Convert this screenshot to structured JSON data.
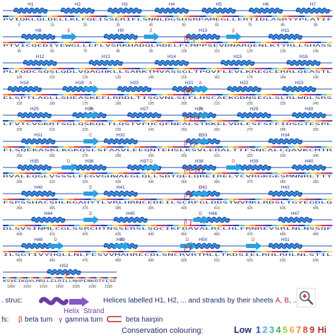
{
  "colors": {
    "helix": "#1f4fb5",
    "helix_light": "#3aa6de",
    "strand": "#2aa0e0",
    "baseline": "#1f4fb5",
    "conservation_band": [
      "#1e3f9a",
      "#5bb8e8",
      "#ffd84a",
      "#ff8a3c",
      "#e63a2c",
      "#7a3fb0"
    ],
    "turn_label": "#c0262d",
    "conservation_levels": [
      "#2a46c6",
      "#5aa6e8",
      "#2fb2b8",
      "#44b24a",
      "#9bcc3a",
      "#e8b12a",
      "#f0801e",
      "#e4482c",
      "#c0262d"
    ]
  },
  "rows": [
    {
      "helix_labels": [
        "H1",
        "H2",
        "H3",
        "H4",
        "H5",
        "H6",
        "H7"
      ],
      "start": 5,
      "step": 10,
      "seq": "PVIQKLQLDELLKLFQEISSERIFLSNNLDGSHSRPAMEGLLERTIDLASRYYPLATIF",
      "sheet_labels": [],
      "turns": ""
    },
    {
      "helix_labels": [
        "H8",
        "H9",
        "H10",
        "H11"
      ],
      "start": 55,
      "step": 10,
      "seq": "PTVICQEDIYEWGLLEFLVSRKHADQLRDELFCMPPSEVDNARQENLKTYRLLSHASS",
      "sheet_labels": [
        "β",
        "β",
        "β"
      ],
      "turns": "ββ γ"
    },
    {
      "helix_labels": [
        "H12",
        "H13",
        "H14",
        "H15",
        "H16"
      ],
      "start": 105,
      "step": 10,
      "seq": "PLFQDCSQSLQDLVQAGHKLLSARKTMVASSGLTPQVFLEVLKREGCERRLQEASTL",
      "sheet_labels": [],
      "turns": ""
    },
    {
      "helix_labels": [
        "H18",
        "H19",
        "H20",
        "H21",
        "H22",
        "H23"
      ],
      "start": 155,
      "step": 10,
      "seq": "ELSPTLAGLLSHEASKEFLRRDLTISGVNLSEFLHSCAEKGDNSEGLSLRLWDLSRS",
      "sheet_labels": [
        "A",
        "A"
      ],
      "turns": "βββ"
    },
    {
      "helix_labels": [
        "H25",
        "H26",
        "H27",
        "H28",
        "H29",
        "H30"
      ],
      "start": 205,
      "step": 10,
      "seq": "LFVTCVGKRTSGLQSKQLTLQSTVFHCQFNEALSTKKELVDLFSFSFFIDSGTESPL",
      "sheet_labels": [
        "B",
        "B"
      ],
      "turns": "β γ ββ"
    },
    {
      "helix_labels": [
        "H31",
        "H32",
        "H33",
        "H34"
      ],
      "start": 255,
      "step": 10,
      "seq": "FLSQEKASKLKGKQSLSFAAVLEEQNTEHSLKSVLERALTTFSNCALCQAVKCMTR",
      "sheet_labels": [
        "C",
        "C"
      ],
      "turns": "β γ β"
    },
    {
      "helix_labels": [
        "H35",
        "H36",
        "H37",
        "H38",
        "H39",
        "H40"
      ],
      "start": 305,
      "step": 10,
      "seq": "RVALEQGLVSSSLFEGVGHWAEGLQLLSDTQELQREIRELYCVRGKGESMNNRLTTT",
      "sheet_labels": [
        "D",
        "D",
        "D"
      ],
      "turns": "β β γγγ"
    },
    {
      "helix_labels": [
        "H40",
        "H41",
        "H42",
        "H43"
      ],
      "start": 355,
      "step": 10,
      "seq": "FSPSSHACSHLKGAHYTLVRLHRNCEDEILSCRFGLDDSTWVMKLRDSLTGYEGDLQ",
      "sheet_labels": [
        "E",
        "E"
      ],
      "turns": "β β"
    },
    {
      "helix_labels": [
        "H44",
        "H45",
        "H46",
        "H47"
      ],
      "start": 405,
      "step": 10,
      "seq": "DLSVSINMLCGLSSRCHTNSSERSLSQCIKFDAVALRCLHLFRNREVSRLNLNSSQF",
      "sheet_labels": [
        "D",
        "D"
      ],
      "turns": "β γ"
    },
    {
      "helix_labels": [
        "H48",
        "H49",
        "H50",
        "H51"
      ],
      "start": 455,
      "step": 10,
      "seq": "ILSGTIVYHQLLNLFESVVMAHRECDLSNCRVRTMLLTKDSIELRHLRHLNLSTIL",
      "sheet_labels": [
        "D",
        "D",
        "D",
        "D"
      ],
      "turns": "β β"
    },
    {
      "helix_labels": [
        "H52"
      ],
      "start": 1005,
      "step": 5,
      "seq": "KSVEIKQVLMRLLELRILLNHPENKDTFESE",
      "sheet_labels": [],
      "turns": "β"
    }
  ],
  "legend": {
    "struc_label": ". struc:",
    "helix_word": "Helix",
    "strand_word": "Strand",
    "struc_desc_1": "Helices labelled H1, H2, ... and strands by their sheets",
    "sheet_a": "A",
    "sheet_b": "B",
    "struc_desc_end": ", ...",
    "motifs_label": "fs:",
    "beta_glyph": "β",
    "beta_turn": "beta turn",
    "gamma_glyph": "γ",
    "gamma_turn": "gamma turn",
    "hairpin": "beta hairpin",
    "conservation_label": "Conservation colouring:",
    "low": "Low",
    "levels": [
      "1",
      "2",
      "3",
      "4",
      "5",
      "6",
      "7",
      "8",
      "9"
    ],
    "high": "Hi"
  },
  "zoom_icon": "magnifier-plus-icon"
}
